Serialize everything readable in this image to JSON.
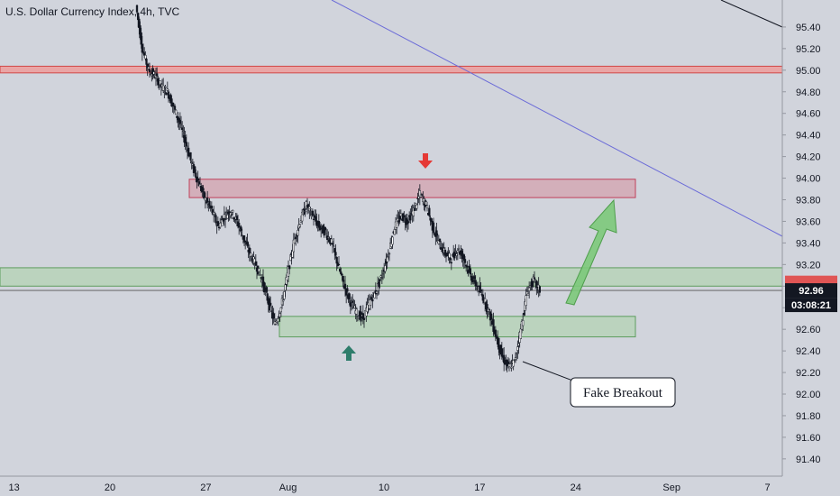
{
  "header": {
    "title": "U.S. Dollar Currency Index, 4h, TVC"
  },
  "price_badge": {
    "price": "92.96",
    "countdown": "03:08:21"
  },
  "annotations": {
    "fake_breakout": "Fake Breakout"
  },
  "colors": {
    "background": "#d1d4dc",
    "resistance_zone": "#d4a8b4",
    "support_zone": "#b7d2b8",
    "price_line": "#e05555",
    "trend_line": "#6b6bd8",
    "arrow_up": "#2e7d6b",
    "arrow_down": "#e53935",
    "projection_arrow": "#7cc97a",
    "badge_bg": "#131722"
  },
  "chart_data": {
    "type": "candlestick",
    "y_ticks": [
      "95.40",
      "95.20",
      "95.00",
      "94.80",
      "94.60",
      "94.40",
      "94.20",
      "94.00",
      "93.80",
      "93.60",
      "93.40",
      "93.20",
      "93.00",
      "92.80",
      "92.60",
      "92.40",
      "92.20",
      "92.00",
      "91.80",
      "91.60",
      "91.40"
    ],
    "x_ticks": [
      "13",
      "20",
      "27",
      "Aug",
      "10",
      "17",
      "24",
      "Sep",
      "7"
    ],
    "ylim": [
      91.24,
      95.65
    ],
    "zones": [
      {
        "name": "resistance",
        "from": 93.82,
        "to": 93.99
      },
      {
        "name": "support_upper",
        "from": 93.0,
        "to": 93.17
      },
      {
        "name": "support_lower",
        "from": 92.53,
        "to": 92.72
      }
    ],
    "horizontal_lines": [
      95.02,
      95.0,
      92.96
    ],
    "trend_line": {
      "from_x_day": 25.5,
      "from_y": 95.65,
      "to_x_day": 44.5,
      "to_y": 93.38
    },
    "close_series": [
      95.6,
      95.2,
      95.0,
      94.95,
      94.85,
      94.8,
      94.65,
      94.5,
      94.3,
      94.1,
      93.95,
      93.8,
      93.7,
      93.55,
      93.65,
      93.7,
      93.6,
      93.45,
      93.3,
      93.2,
      93.05,
      92.85,
      92.65,
      92.8,
      93.1,
      93.4,
      93.6,
      93.75,
      93.65,
      93.55,
      93.5,
      93.4,
      93.2,
      93.0,
      92.85,
      92.75,
      92.7,
      92.85,
      92.95,
      93.1,
      93.3,
      93.55,
      93.65,
      93.6,
      93.7,
      93.85,
      93.75,
      93.55,
      93.4,
      93.3,
      93.25,
      93.35,
      93.25,
      93.1,
      93.0,
      92.9,
      92.75,
      92.55,
      92.35,
      92.25,
      92.3,
      92.6,
      92.95,
      93.05,
      92.96
    ]
  }
}
